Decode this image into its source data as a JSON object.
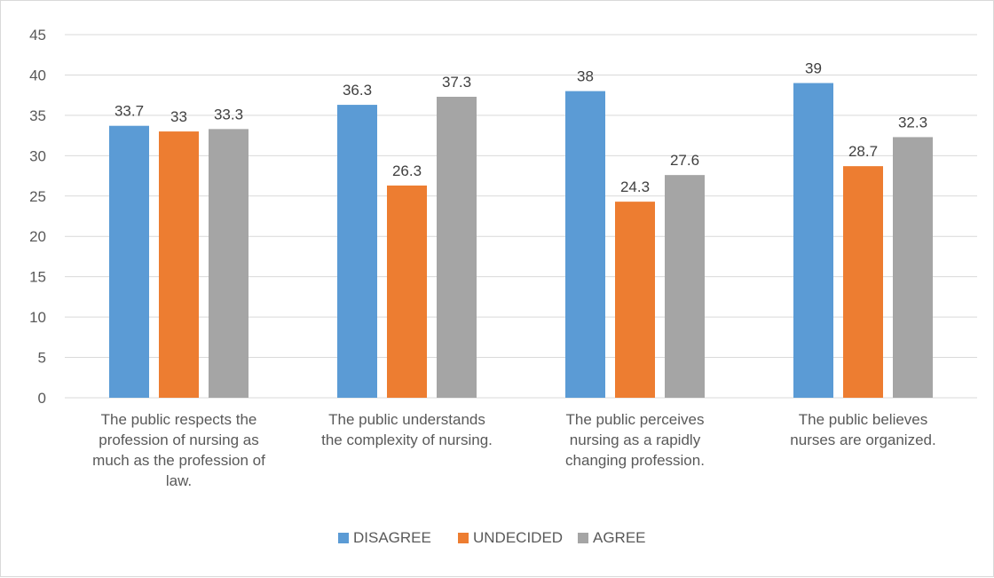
{
  "chart_data": {
    "type": "bar",
    "categories": [
      [
        "The public respects the",
        "profession of nursing as",
        "much as the profession of",
        "law."
      ],
      [
        "The public understands",
        "the complexity of nursing."
      ],
      [
        "The public perceives",
        "nursing as a rapidly",
        "changing profession."
      ],
      [
        "The public believes",
        "nurses are organized."
      ]
    ],
    "series": [
      {
        "name": "DISAGREE",
        "color": "#5b9bd5",
        "values": [
          33.7,
          36.3,
          38,
          39
        ]
      },
      {
        "name": "UNDECIDED",
        "color": "#ed7d31",
        "values": [
          33,
          26.3,
          24.3,
          28.7
        ]
      },
      {
        "name": "AGREE",
        "color": "#a5a5a5",
        "values": [
          33.3,
          37.3,
          27.6,
          32.3
        ]
      }
    ],
    "ylim": [
      0,
      45
    ],
    "yticks": [
      0,
      5,
      10,
      15,
      20,
      25,
      30,
      35,
      40,
      45
    ],
    "grid": true,
    "legend": "bottom",
    "title": "",
    "xlabel": "",
    "ylabel": ""
  }
}
